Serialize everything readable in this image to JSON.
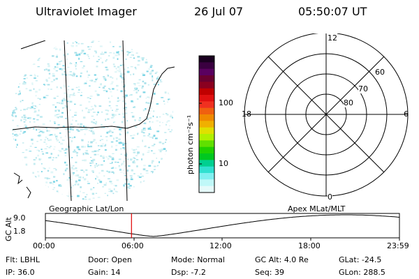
{
  "header": {
    "title": "Ultraviolet Imager",
    "date": "26 Jul 07",
    "time": "05:50:07 UT"
  },
  "colorbar": {
    "unit_label": "photon cm⁻²s⁻¹",
    "ticks": [
      "100",
      "10"
    ],
    "colors_top_to_bottom": [
      "#1a0020",
      "#3a0040",
      "#5a0060",
      "#6a0030",
      "#8a0020",
      "#c00000",
      "#e01010",
      "#f03020",
      "#f06010",
      "#f08a00",
      "#f0b000",
      "#e0e000",
      "#b0f000",
      "#60e000",
      "#20d000",
      "#00c820",
      "#00d090",
      "#30e0d0",
      "#80f0f0",
      "#c0f8f8",
      "#e6fafa"
    ]
  },
  "polar": {
    "mlt_labels": {
      "top": "12",
      "left": "18",
      "right": "6",
      "bottom": "0"
    },
    "lat_labels": [
      "60",
      "70",
      "80"
    ]
  },
  "timeline": {
    "left_label": "Geographic Lat/Lon",
    "right_label": "Apex MLat/MLT",
    "y_axis_title": "GC Alt",
    "y_ticks": [
      "9.0",
      "1.8"
    ],
    "x_ticks": [
      "00:00",
      "06:00",
      "12:00",
      "18:00",
      "23:59"
    ],
    "current_marker_color": "#e00000"
  },
  "info": {
    "rows": [
      [
        {
          "k": "Flt:",
          "v": "LBHL"
        },
        {
          "k": "Door:",
          "v": "Open"
        },
        {
          "k": "Mode:",
          "v": "Normal"
        },
        {
          "k": "GC Alt:",
          "v": "4.0 Re"
        },
        {
          "k": "GLat:",
          "v": "-24.5"
        }
      ],
      [
        {
          "k": "IP:",
          "v": "36.0"
        },
        {
          "k": "Gain:",
          "v": "14"
        },
        {
          "k": "Dsp:",
          "v": "-7.2"
        },
        {
          "k": "Seq:",
          "v": "39"
        },
        {
          "k": "GLon:",
          "v": "288.5"
        }
      ]
    ]
  }
}
